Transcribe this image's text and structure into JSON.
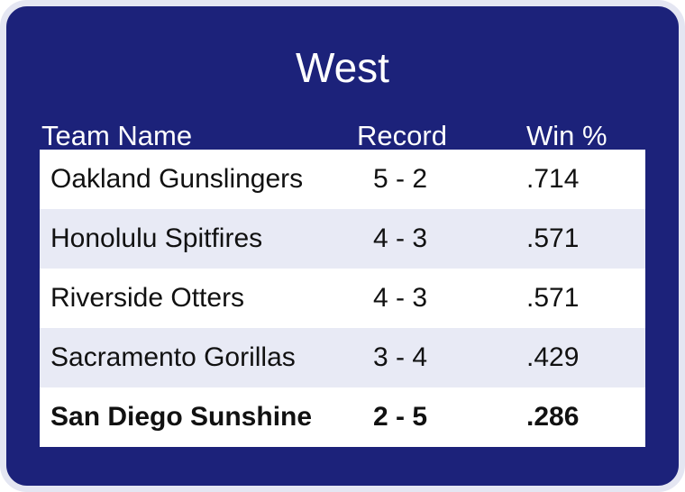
{
  "title": "West",
  "columns": {
    "team": "Team Name",
    "record": "Record",
    "win": "Win %"
  },
  "rows": [
    {
      "team": "Oakland Gunslingers",
      "record": "5 - 2",
      "win": ".714"
    },
    {
      "team": "Honolulu Spitfires",
      "record": "4 - 3",
      "win": ".571"
    },
    {
      "team": "Riverside Otters",
      "record": "4 - 3",
      "win": ".571"
    },
    {
      "team": "Sacramento Gorillas",
      "record": "3 - 4",
      "win": ".429"
    },
    {
      "team": "San Diego Sunshine",
      "record": "2 - 5",
      "win": ".286"
    }
  ],
  "colors": {
    "card_background": "#1c227a",
    "card_border": "#e4e6f2",
    "row_alt": "#e8eaf5"
  }
}
